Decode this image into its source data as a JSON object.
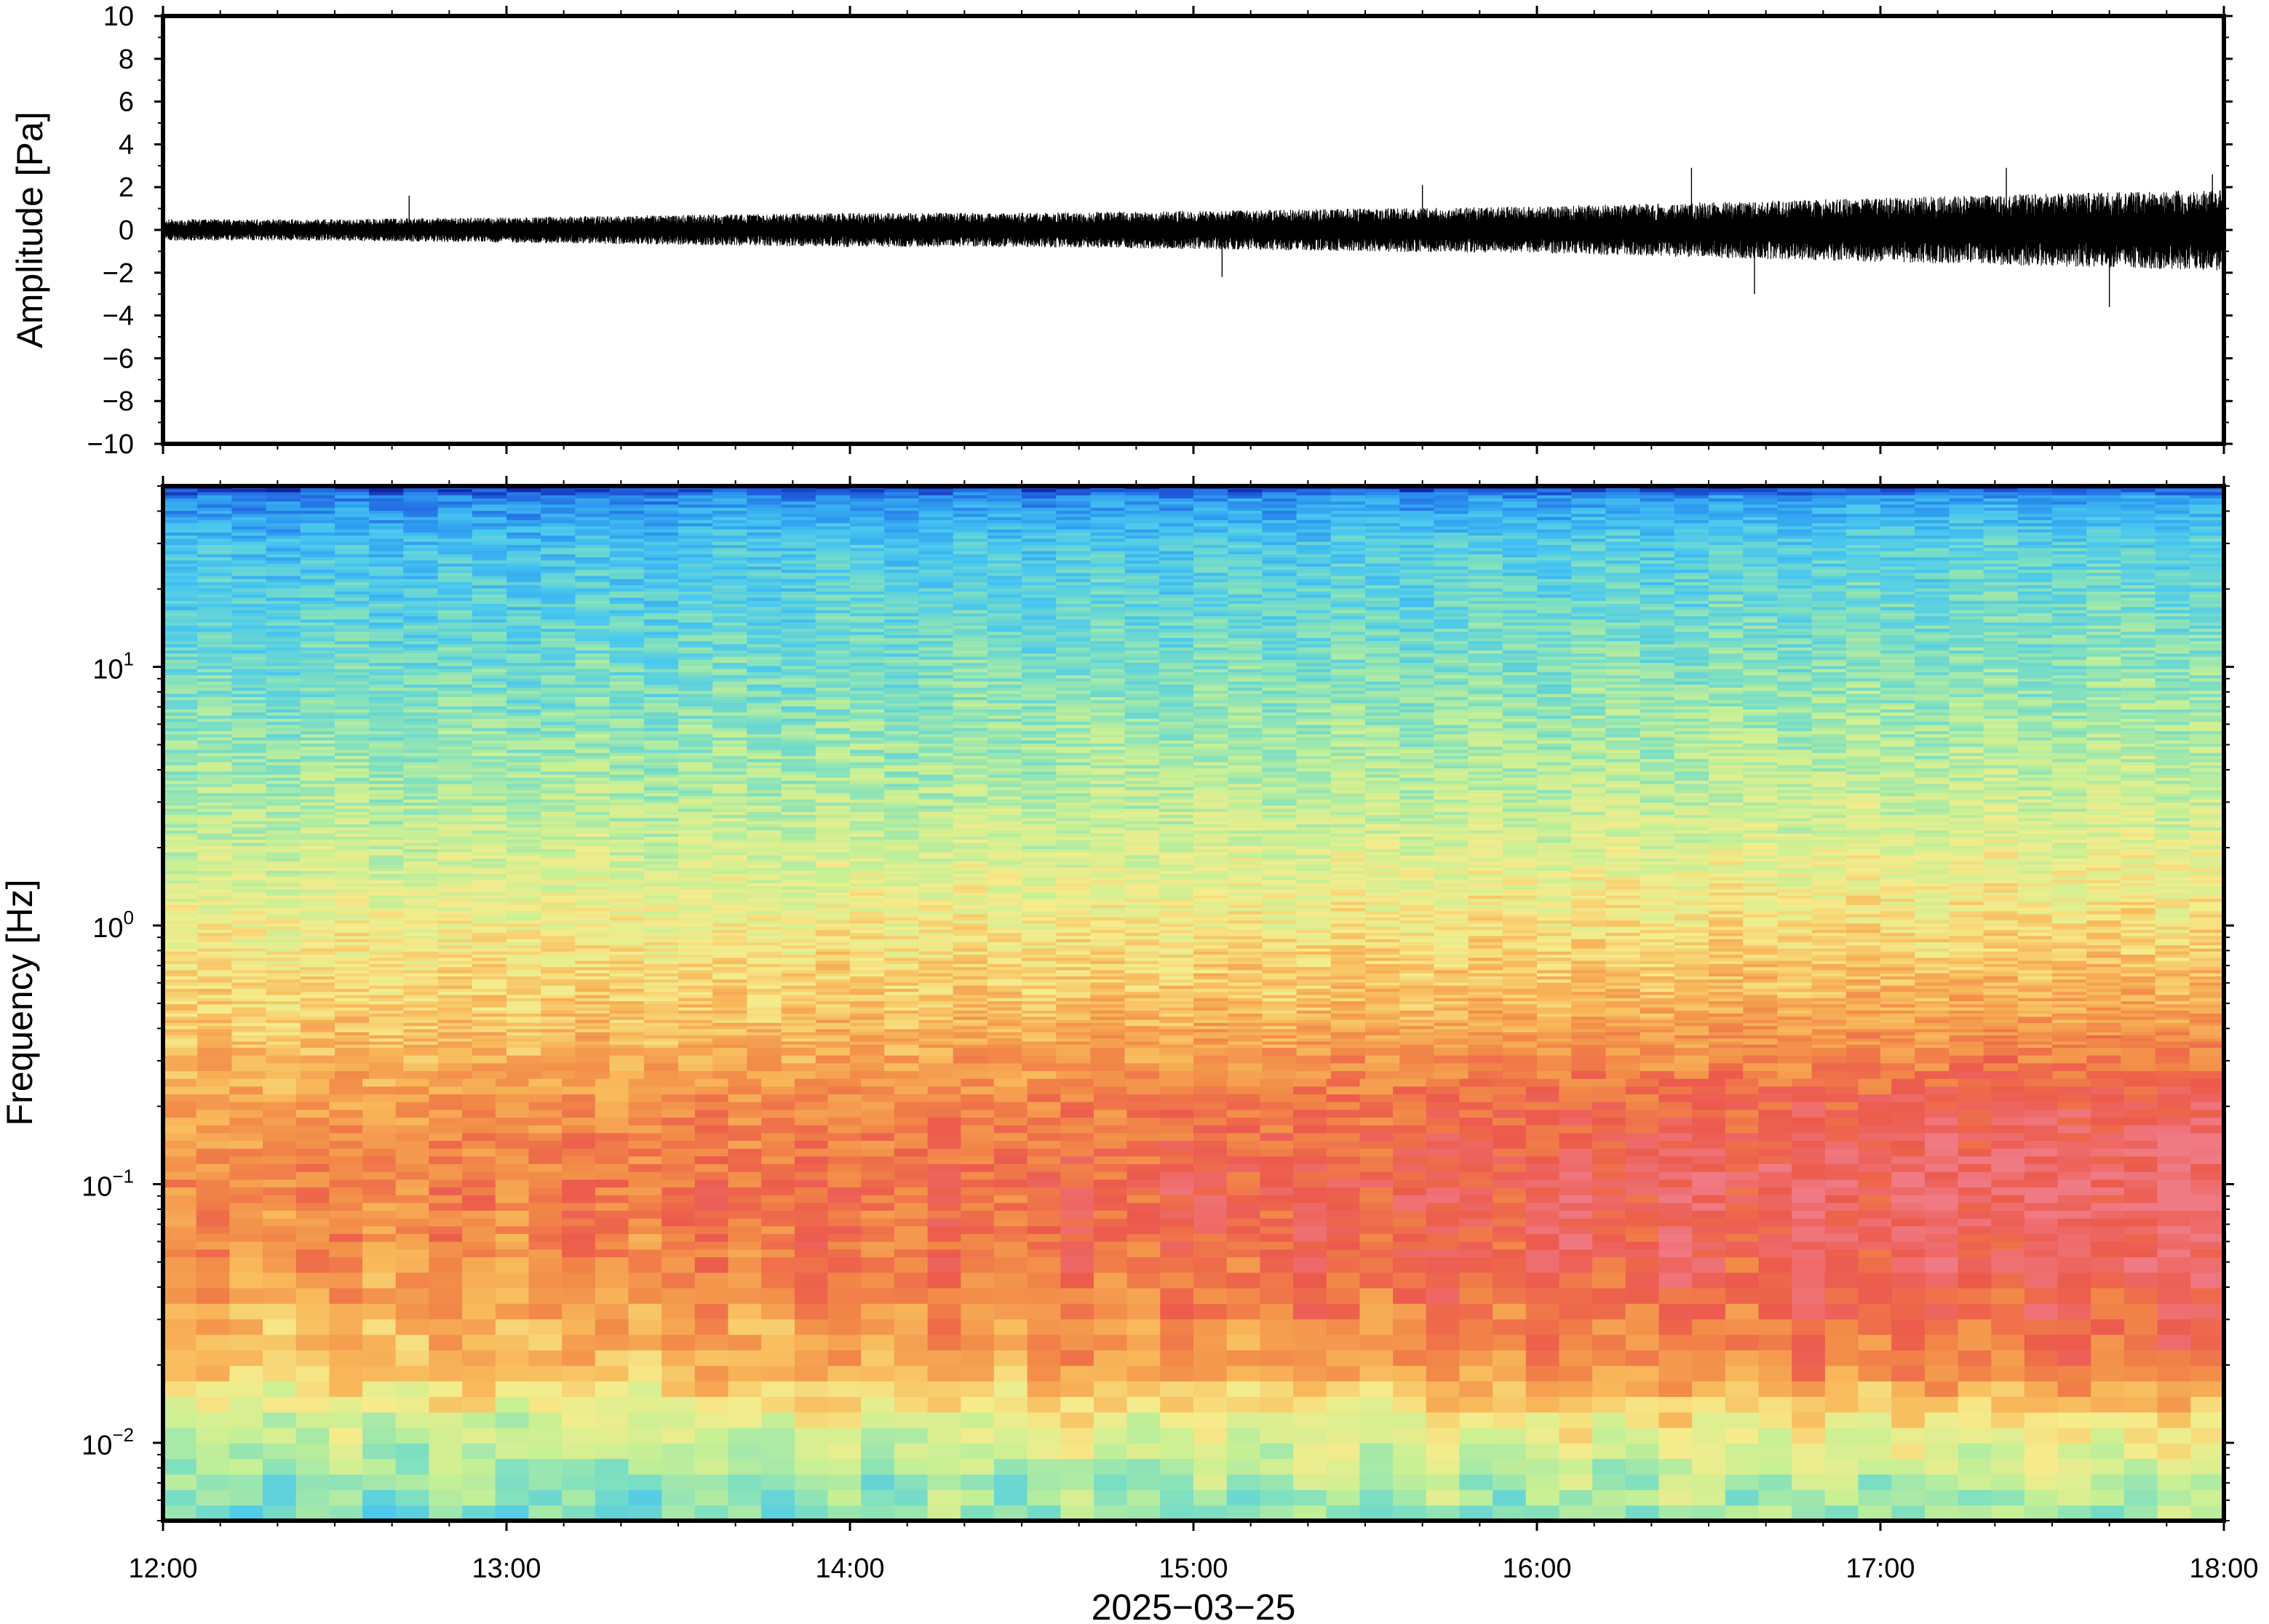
{
  "chart_data": [
    {
      "type": "line",
      "title": "",
      "ylabel": "Amplitude [Pa]",
      "xlabel": "",
      "ylim": [
        -10,
        10
      ],
      "yticks": [
        10,
        8,
        6,
        4,
        2,
        0,
        -2,
        -4,
        -6,
        -8,
        -10
      ],
      "ytick_labels": [
        "10",
        "8",
        "6",
        "4",
        "2",
        "0",
        "−2",
        "−4",
        "−6",
        "−8",
        "−10"
      ],
      "xlim": [
        "2025-03-25 12:00",
        "2025-03-25 18:00"
      ],
      "series": [
        {
          "color": "#000000",
          "x": [
            "12:00",
            "12:30",
            "13:00",
            "13:30",
            "14:00",
            "14:30",
            "15:00",
            "15:30",
            "16:00",
            "16:30",
            "17:00",
            "17:30",
            "18:00"
          ],
          "envelope_upper": [
            0.5,
            0.5,
            0.6,
            0.7,
            0.8,
            0.8,
            0.9,
            1.0,
            1.1,
            1.3,
            1.5,
            1.7,
            1.9
          ],
          "envelope_lower": [
            -0.5,
            -0.5,
            -0.6,
            -0.7,
            -0.8,
            -0.8,
            -0.9,
            -1.0,
            -1.1,
            -1.3,
            -1.5,
            -1.7,
            -1.9
          ],
          "spikes": [
            {
              "x": "12:43",
              "y": 1.6
            },
            {
              "x": "15:05",
              "y": -2.2
            },
            {
              "x": "15:40",
              "y": 2.1
            },
            {
              "x": "16:27",
              "y": 2.9
            },
            {
              "x": "16:38",
              "y": -3.0
            },
            {
              "x": "17:22",
              "y": 2.9
            },
            {
              "x": "17:40",
              "y": -3.6
            },
            {
              "x": "17:58",
              "y": 2.6
            }
          ]
        }
      ],
      "grid": false
    },
    {
      "type": "heatmap",
      "title": "",
      "ylabel": "Frequency [Hz]",
      "xlabel": "2025−03−25",
      "yscale": "log",
      "ylim": [
        0.005,
        50
      ],
      "yticks": [
        0.01,
        0.1,
        1,
        10
      ],
      "ytick_labels": [
        {
          "base": "10",
          "exp": "−2"
        },
        {
          "base": "10",
          "exp": "−1"
        },
        {
          "base": "10",
          "exp": "0"
        },
        {
          "base": "10",
          "exp": "1"
        }
      ],
      "x": [
        "12:00",
        "13:00",
        "14:00",
        "15:00",
        "16:00",
        "17:00",
        "18:00"
      ],
      "xtick_labels": [
        "12:00",
        "13:00",
        "14:00",
        "15:00",
        "16:00",
        "17:00",
        "18:00"
      ],
      "colormap": [
        "#10209a",
        "#1f5fe0",
        "#2f9df0",
        "#48c7f0",
        "#7fe0c0",
        "#c8f094",
        "#f6ec8c",
        "#f8b85a",
        "#f28a48",
        "#ec5a4c",
        "#f07a84"
      ],
      "relative_power_profile": [
        {
          "freq": 0.005,
          "start": 3.8,
          "end": 4.6
        },
        {
          "freq": 0.008,
          "start": 4.4,
          "end": 5.2
        },
        {
          "freq": 0.012,
          "start": 5.2,
          "end": 6.2
        },
        {
          "freq": 0.02,
          "start": 6.6,
          "end": 8.4
        },
        {
          "freq": 0.05,
          "start": 7.6,
          "end": 9.5
        },
        {
          "freq": 0.1,
          "start": 7.9,
          "end": 9.9
        },
        {
          "freq": 0.2,
          "start": 7.4,
          "end": 9.2
        },
        {
          "freq": 0.5,
          "start": 6.4,
          "end": 7.4
        },
        {
          "freq": 1,
          "start": 5.8,
          "end": 6.3
        },
        {
          "freq": 3,
          "start": 4.6,
          "end": 5.2
        },
        {
          "freq": 10,
          "start": 3.7,
          "end": 4.2
        },
        {
          "freq": 30,
          "start": 2.8,
          "end": 3.4
        },
        {
          "freq": 45,
          "start": 1.6,
          "end": 2.2
        },
        {
          "freq": 50,
          "start": 0.2,
          "end": 0.4
        }
      ]
    }
  ]
}
